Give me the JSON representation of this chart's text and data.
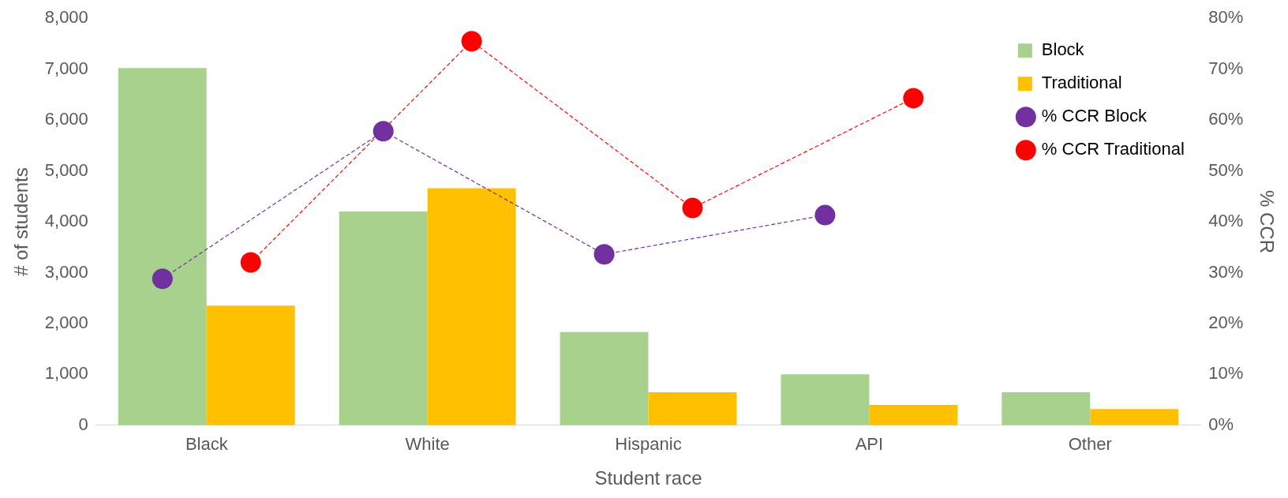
{
  "chart_data": {
    "type": "bar",
    "xlabel": "Student race",
    "ylabel": "# of students",
    "y2label": "% CCR",
    "categories": [
      "Black",
      "White",
      "Hispanic",
      "API",
      "Other"
    ],
    "series": [
      {
        "name": "Block",
        "color": "#a9d18e",
        "values": [
          7020,
          4200,
          1830,
          1000,
          650
        ]
      },
      {
        "name": "Traditional",
        "color": "#ffc000",
        "values": [
          2350,
          4660,
          650,
          400,
          320
        ]
      },
      {
        "name": "% CCR Block",
        "type": "line",
        "axis": "y2",
        "color": "#7030a0",
        "marker": "circle",
        "line_style": "dashed",
        "values": [
          28.8,
          57.8,
          33.6,
          41.3,
          null
        ]
      },
      {
        "name": "% CCR Traditional",
        "type": "line",
        "axis": "y2",
        "color": "#ff0000",
        "marker": "circle",
        "line_style": "dashed",
        "values": [
          32,
          75.5,
          42.7,
          64.3,
          null
        ]
      }
    ],
    "ylim": [
      0,
      8000
    ],
    "yticks": [
      {
        "value": 0,
        "label": "0"
      },
      {
        "value": 1000,
        "label": "1,000"
      },
      {
        "value": 2000,
        "label": "2,000"
      },
      {
        "value": 3000,
        "label": "3,000"
      },
      {
        "value": 4000,
        "label": "4,000"
      },
      {
        "value": 5000,
        "label": "5,000"
      },
      {
        "value": 6000,
        "label": "6,000"
      },
      {
        "value": 7000,
        "label": "7,000"
      },
      {
        "value": 8000,
        "label": "8,000"
      }
    ],
    "y2lim": [
      0,
      80
    ],
    "y2ticks": [
      {
        "value": 0,
        "label": "0%"
      },
      {
        "value": 10,
        "label": "10%"
      },
      {
        "value": 20,
        "label": "20%"
      },
      {
        "value": 30,
        "label": "30%"
      },
      {
        "value": 40,
        "label": "40%"
      },
      {
        "value": 50,
        "label": "50%"
      },
      {
        "value": 60,
        "label": "60%"
      },
      {
        "value": 70,
        "label": "70%"
      },
      {
        "value": 80,
        "label": "80%"
      }
    ],
    "grid": false,
    "legend": "top right"
  }
}
